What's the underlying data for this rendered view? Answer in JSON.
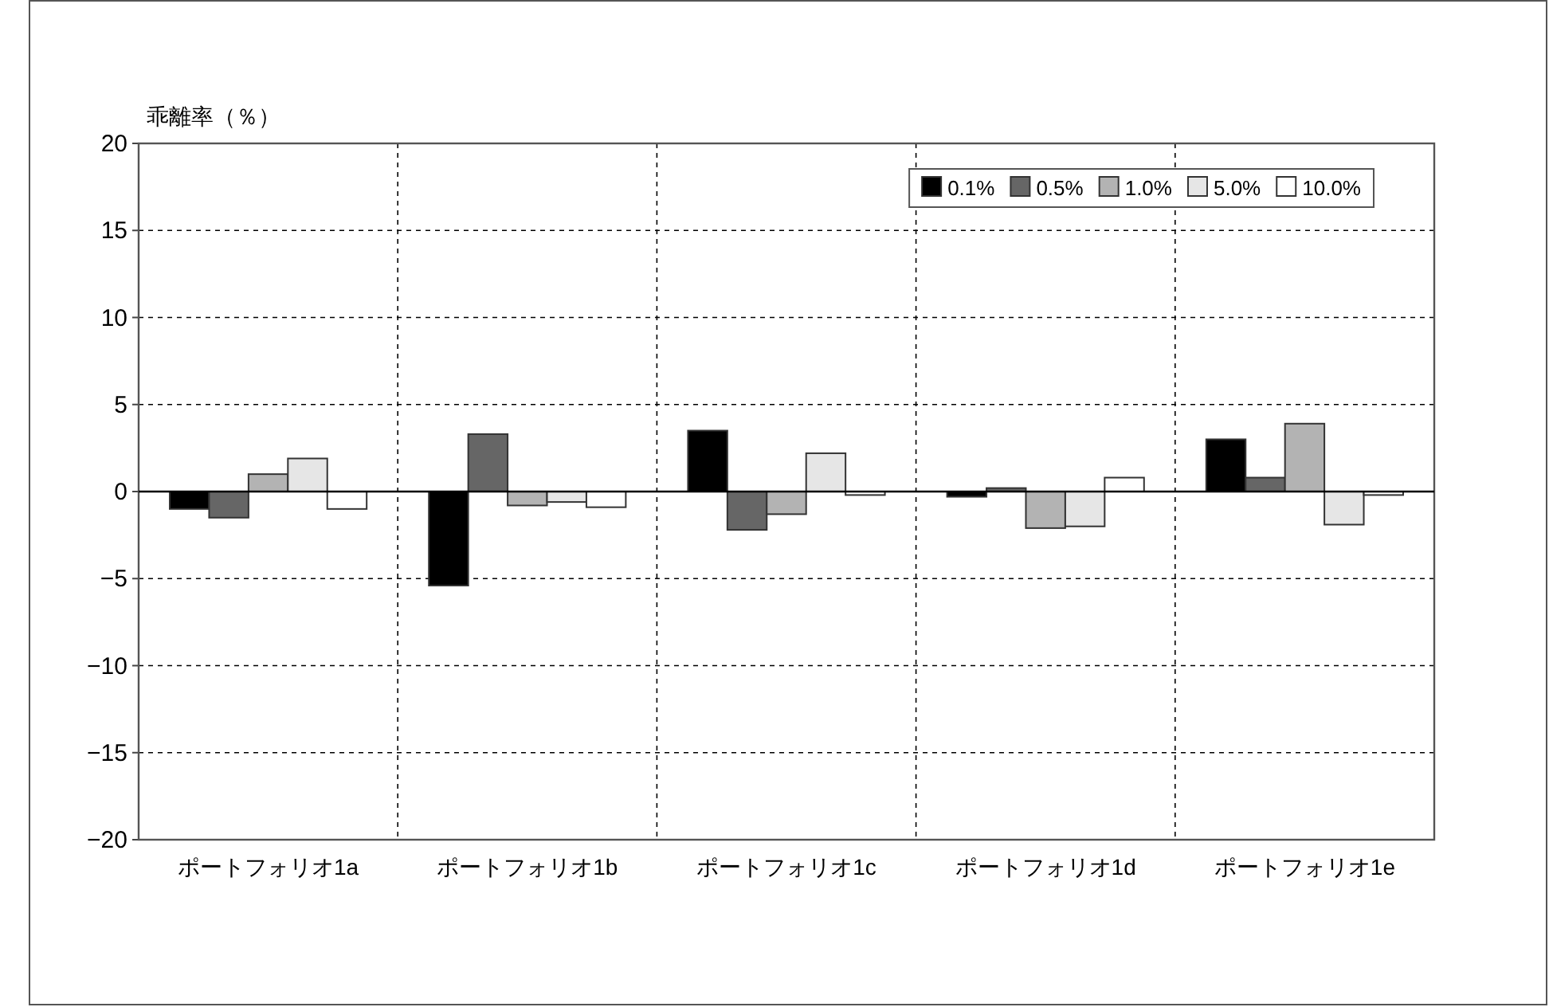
{
  "chart_data": {
    "type": "bar",
    "ylabel": "乖離率（％）",
    "categories": [
      "ポートフォリオ1a",
      "ポートフォリオ1b",
      "ポートフォリオ1c",
      "ポートフォリオ1d",
      "ポートフォリオ1e"
    ],
    "series": [
      {
        "name": "0.1%",
        "color": "#000000",
        "values": [
          -1.0,
          -5.4,
          3.5,
          -0.3,
          3.0
        ]
      },
      {
        "name": "0.5%",
        "color": "#666666",
        "values": [
          -1.5,
          3.3,
          -2.2,
          0.2,
          0.8
        ]
      },
      {
        "name": "1.0%",
        "color": "#b3b3b3",
        "values": [
          1.0,
          -0.8,
          -1.3,
          -2.1,
          3.9
        ]
      },
      {
        "name": "5.0%",
        "color": "#e6e6e6",
        "values": [
          1.9,
          -0.6,
          2.2,
          -2.0,
          -1.9
        ]
      },
      {
        "name": "10.0%",
        "color": "#ffffff",
        "values": [
          -1.0,
          -0.9,
          -0.2,
          0.8,
          -0.2
        ]
      }
    ],
    "ylim": [
      -20,
      20
    ],
    "yticks": [
      {
        "value": -20,
        "label": "−20"
      },
      {
        "value": -15,
        "label": "−15"
      },
      {
        "value": -10,
        "label": "−10"
      },
      {
        "value": -5,
        "label": "−5"
      },
      0,
      5,
      10,
      15,
      20
    ],
    "grid": true,
    "legend": "top right"
  }
}
